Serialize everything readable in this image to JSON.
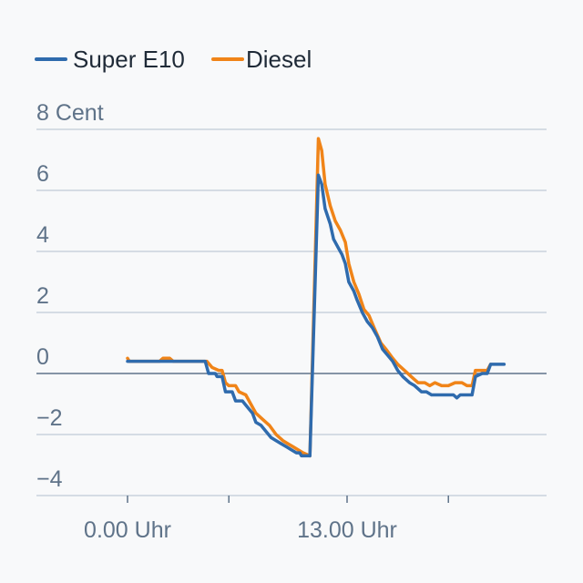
{
  "chart_data": {
    "type": "line",
    "ylim": [
      -4,
      8
    ],
    "y_ticks": [
      {
        "value": 8,
        "label": "8 Cent"
      },
      {
        "value": 6,
        "label": "6"
      },
      {
        "value": 4,
        "label": "4"
      },
      {
        "value": 2,
        "label": "2"
      },
      {
        "value": 0,
        "label": "0"
      },
      {
        "value": -2,
        "label": "−2"
      },
      {
        "value": -4,
        "label": "−4"
      }
    ],
    "x_ticks": [
      {
        "hour": 0,
        "label": "0.00 Uhr"
      },
      {
        "hour": 6,
        "label": ""
      },
      {
        "hour": 13,
        "label": "13.00 Uhr"
      },
      {
        "hour": 19,
        "label": ""
      }
    ],
    "legend": {
      "position": "top-left"
    },
    "grid": true,
    "series": [
      {
        "name": "Super E10",
        "color": "#2f6bad",
        "points": [
          [
            0,
            0.4
          ],
          [
            1,
            0.4
          ],
          [
            2,
            0.4
          ],
          [
            3,
            0.4
          ],
          [
            4,
            0.4
          ],
          [
            4.6,
            0.4
          ],
          [
            4.8,
            0.0
          ],
          [
            5.2,
            0.0
          ],
          [
            5.3,
            -0.1
          ],
          [
            5.6,
            -0.1
          ],
          [
            5.8,
            -0.6
          ],
          [
            6.2,
            -0.6
          ],
          [
            6.4,
            -0.9
          ],
          [
            6.8,
            -0.9
          ],
          [
            7.1,
            -1.1
          ],
          [
            7.4,
            -1.3
          ],
          [
            7.6,
            -1.6
          ],
          [
            7.9,
            -1.7
          ],
          [
            8.2,
            -1.9
          ],
          [
            8.5,
            -2.1
          ],
          [
            8.8,
            -2.2
          ],
          [
            9.1,
            -2.3
          ],
          [
            9.4,
            -2.4
          ],
          [
            9.7,
            -2.5
          ],
          [
            10.0,
            -2.6
          ],
          [
            10.2,
            -2.6
          ],
          [
            10.3,
            -2.7
          ],
          [
            10.8,
            -2.7
          ],
          [
            11.3,
            6.5
          ],
          [
            11.5,
            6.2
          ],
          [
            11.7,
            5.4
          ],
          [
            12.0,
            4.9
          ],
          [
            12.2,
            4.4
          ],
          [
            12.5,
            4.1
          ],
          [
            12.7,
            3.9
          ],
          [
            12.9,
            3.6
          ],
          [
            13.1,
            3.0
          ],
          [
            13.4,
            2.7
          ],
          [
            13.6,
            2.4
          ],
          [
            13.9,
            2.0
          ],
          [
            14.2,
            1.7
          ],
          [
            14.5,
            1.5
          ],
          [
            14.8,
            1.2
          ],
          [
            15.1,
            0.8
          ],
          [
            15.4,
            0.6
          ],
          [
            15.7,
            0.4
          ],
          [
            16.0,
            0.1
          ],
          [
            16.3,
            -0.1
          ],
          [
            16.7,
            -0.3
          ],
          [
            17.0,
            -0.4
          ],
          [
            17.4,
            -0.6
          ],
          [
            17.7,
            -0.6
          ],
          [
            18.0,
            -0.7
          ],
          [
            18.5,
            -0.7
          ],
          [
            19.0,
            -0.7
          ],
          [
            19.3,
            -0.7
          ],
          [
            19.5,
            -0.8
          ],
          [
            19.7,
            -0.7
          ],
          [
            20.0,
            -0.7
          ],
          [
            20.4,
            -0.7
          ],
          [
            20.6,
            -0.1
          ],
          [
            21.0,
            0.0
          ],
          [
            21.3,
            0.0
          ],
          [
            21.5,
            0.3
          ],
          [
            22.3,
            0.3
          ]
        ]
      },
      {
        "name": "Diesel",
        "color": "#f08418",
        "points": [
          [
            0,
            0.5
          ],
          [
            0.1,
            0.4
          ],
          [
            1,
            0.4
          ],
          [
            1.9,
            0.4
          ],
          [
            2.1,
            0.5
          ],
          [
            2.5,
            0.5
          ],
          [
            2.7,
            0.4
          ],
          [
            3.5,
            0.4
          ],
          [
            4.4,
            0.4
          ],
          [
            4.7,
            0.4
          ],
          [
            5.0,
            0.2
          ],
          [
            5.4,
            0.1
          ],
          [
            5.6,
            0.1
          ],
          [
            5.8,
            -0.3
          ],
          [
            6.0,
            -0.4
          ],
          [
            6.4,
            -0.4
          ],
          [
            6.6,
            -0.6
          ],
          [
            7.0,
            -0.7
          ],
          [
            7.3,
            -1.0
          ],
          [
            7.6,
            -1.3
          ],
          [
            8.0,
            -1.5
          ],
          [
            8.4,
            -1.7
          ],
          [
            8.8,
            -2.0
          ],
          [
            9.2,
            -2.2
          ],
          [
            9.5,
            -2.3
          ],
          [
            9.8,
            -2.4
          ],
          [
            10.1,
            -2.5
          ],
          [
            10.4,
            -2.6
          ],
          [
            10.8,
            -2.7
          ],
          [
            11.3,
            7.7
          ],
          [
            11.5,
            7.3
          ],
          [
            11.7,
            6.2
          ],
          [
            12.0,
            5.5
          ],
          [
            12.3,
            5.0
          ],
          [
            12.6,
            4.7
          ],
          [
            12.9,
            4.3
          ],
          [
            13.1,
            3.6
          ],
          [
            13.4,
            3.0
          ],
          [
            13.7,
            2.6
          ],
          [
            14.0,
            2.1
          ],
          [
            14.3,
            1.9
          ],
          [
            14.6,
            1.5
          ],
          [
            15.0,
            1.0
          ],
          [
            15.3,
            0.8
          ],
          [
            15.7,
            0.5
          ],
          [
            16.0,
            0.3
          ],
          [
            16.4,
            0.1
          ],
          [
            16.8,
            -0.1
          ],
          [
            17.2,
            -0.3
          ],
          [
            17.6,
            -0.3
          ],
          [
            17.9,
            -0.4
          ],
          [
            18.2,
            -0.3
          ],
          [
            18.6,
            -0.4
          ],
          [
            19.0,
            -0.4
          ],
          [
            19.4,
            -0.3
          ],
          [
            19.8,
            -0.3
          ],
          [
            20.1,
            -0.4
          ],
          [
            20.4,
            -0.4
          ],
          [
            20.6,
            0.1
          ],
          [
            21.0,
            0.1
          ],
          [
            21.3,
            0.1
          ],
          [
            21.5,
            0.3
          ]
        ]
      }
    ]
  }
}
